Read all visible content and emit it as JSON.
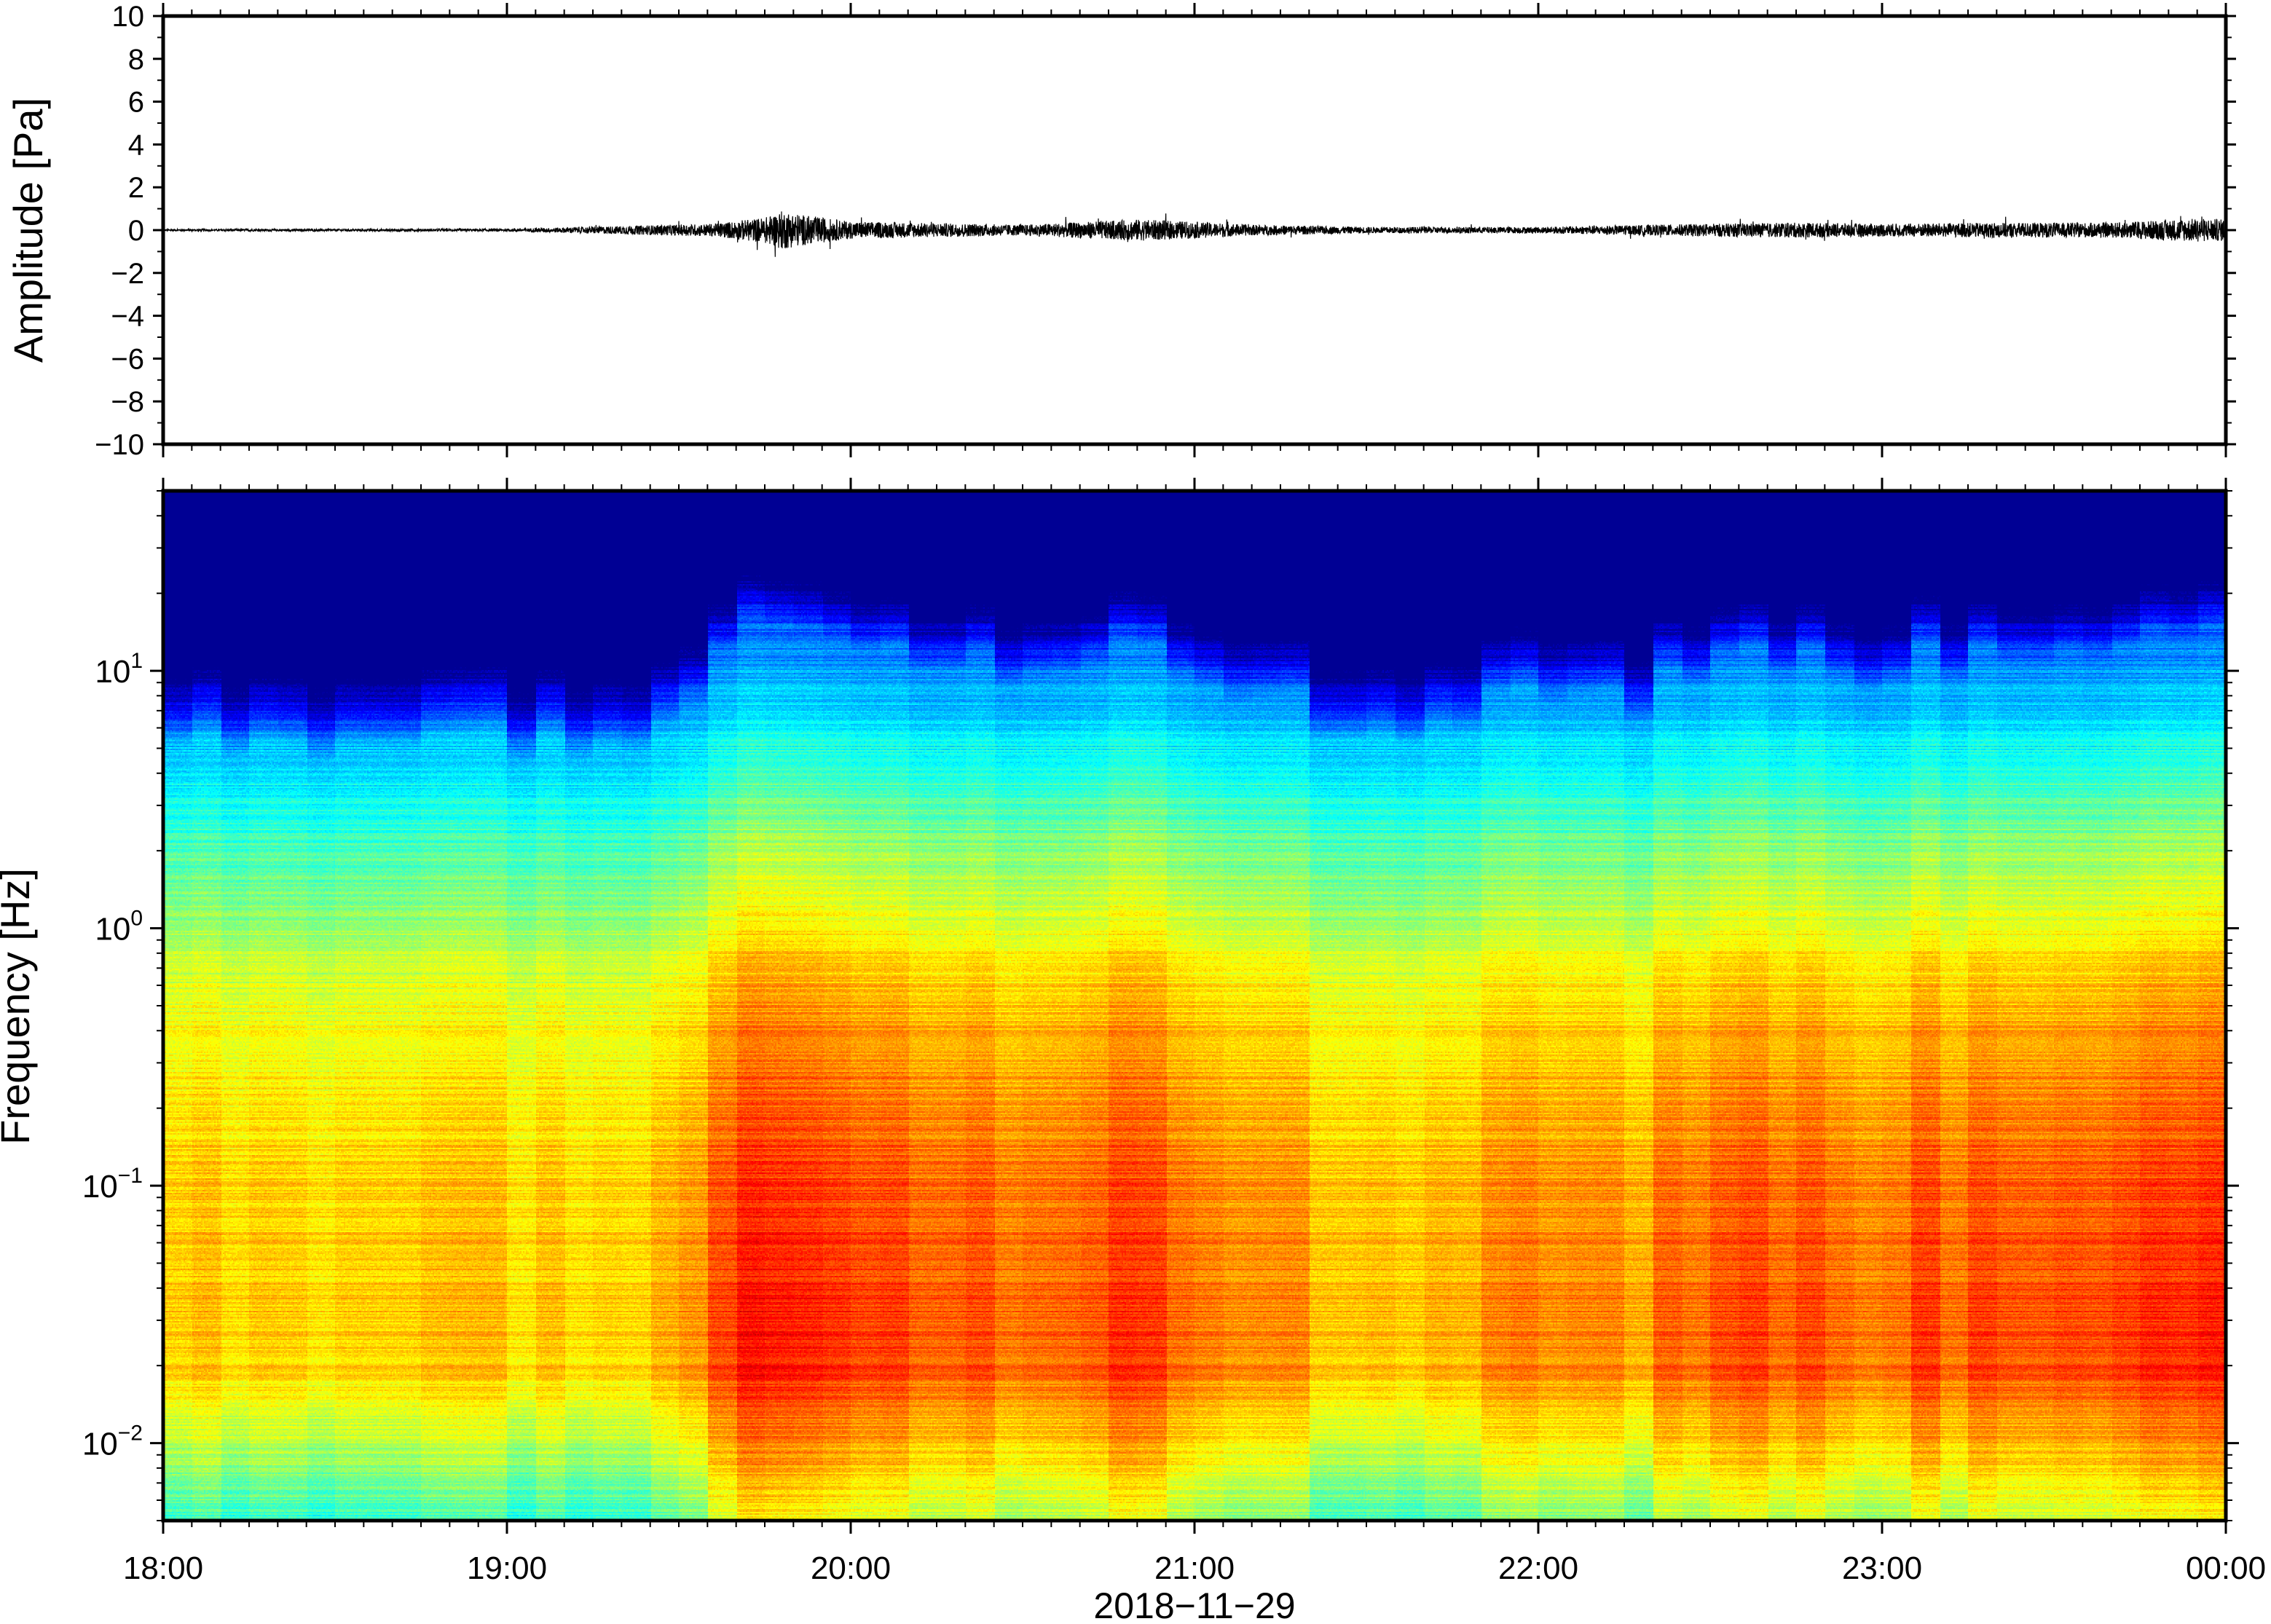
{
  "chart_data": [
    {
      "type": "line",
      "panel": "top",
      "title": "",
      "ylabel": "Amplitude [Pa]",
      "ylim": [
        -10,
        10
      ],
      "yticks": [
        "10",
        "8",
        "6",
        "4",
        "2",
        "0",
        "−2",
        "−4",
        "−6",
        "−8",
        "−10"
      ],
      "xlim": [
        "18:00",
        "00:00"
      ],
      "grid": false,
      "series": [
        {
          "values_description_times": [
            "18:00",
            "19:00",
            "19:36",
            "19:45",
            "19:48",
            "19:52",
            "20:00",
            "20:10",
            "20:30",
            "20:50",
            "20:55",
            "21:10",
            "21:30",
            "22:00",
            "22:30",
            "22:45",
            "23:00",
            "23:20",
            "23:40",
            "23:55",
            "00:00"
          ],
          "envelope_pa": [
            0.05,
            0.06,
            0.3,
            0.6,
            0.9,
            0.7,
            0.4,
            0.35,
            0.25,
            0.5,
            0.45,
            0.25,
            0.15,
            0.15,
            0.3,
            0.35,
            0.3,
            0.35,
            0.35,
            0.55,
            0.5
          ]
        }
      ]
    },
    {
      "type": "heatmap",
      "panel": "bottom",
      "title": "",
      "ylabel": "Frequency [Hz]",
      "yscale": "log",
      "ylim": [
        0.005,
        50
      ],
      "yticks": [
        {
          "base": "10",
          "exp": "1"
        },
        {
          "base": "10",
          "exp": "0"
        },
        {
          "base": "10",
          "exp": "−1"
        },
        {
          "base": "10",
          "exp": "−2"
        }
      ],
      "xlabel": "2018−11−29",
      "xticks": [
        "18:00",
        "19:00",
        "20:00",
        "21:00",
        "22:00",
        "23:00",
        "00:00"
      ],
      "colormap": "jet",
      "colorbar": false,
      "activity_profile": {
        "times_hours_after_1800": [
          0,
          0.5,
          1.0,
          1.5,
          1.6,
          1.8,
          2.0,
          2.3,
          2.6,
          2.8,
          3.0,
          3.2,
          3.4,
          3.6,
          4.0,
          4.3,
          4.5,
          4.8,
          5.0,
          5.5,
          6.0
        ],
        "relative_level": [
          0.1,
          0.15,
          0.15,
          0.1,
          0.7,
          1.0,
          0.85,
          0.6,
          0.55,
          0.85,
          0.6,
          0.4,
          0.15,
          0.2,
          0.45,
          0.35,
          0.6,
          0.6,
          0.55,
          0.7,
          0.9
        ]
      }
    }
  ]
}
